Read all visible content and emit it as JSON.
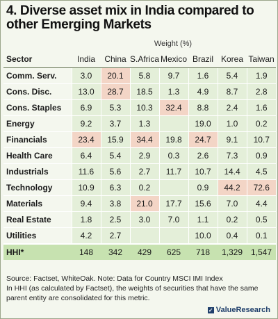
{
  "title": "4. Diverse asset mix in India compared to other Emerging Markets",
  "weight_label": "Weight (%)",
  "sector_label": "Sector",
  "columns": [
    "India",
    "China",
    "S.Africa",
    "Mexico",
    "Brazil",
    "Korea",
    "Taiwan"
  ],
  "rows": [
    {
      "sector": "Comm. Serv.",
      "values": [
        "3.0",
        "20.1",
        "5.8",
        "9.7",
        "1.6",
        "5.4",
        "1.9"
      ],
      "highlight": [
        false,
        true,
        false,
        false,
        false,
        false,
        false
      ]
    },
    {
      "sector": "Cons. Disc.",
      "values": [
        "13.0",
        "28.7",
        "18.5",
        "1.3",
        "4.9",
        "8.7",
        "2.8"
      ],
      "highlight": [
        false,
        true,
        false,
        false,
        false,
        false,
        false
      ]
    },
    {
      "sector": "Cons. Staples",
      "values": [
        "6.9",
        "5.3",
        "10.3",
        "32.4",
        "8.8",
        "2.4",
        "1.6"
      ],
      "highlight": [
        false,
        false,
        false,
        true,
        false,
        false,
        false
      ]
    },
    {
      "sector": "Energy",
      "values": [
        "9.2",
        "3.7",
        "1.3",
        "",
        "19.0",
        "1.0",
        "0.2"
      ],
      "highlight": [
        false,
        false,
        false,
        false,
        false,
        false,
        false
      ]
    },
    {
      "sector": "Financials",
      "values": [
        "23.4",
        "15.9",
        "34.4",
        "19.8",
        "24.7",
        "9.1",
        "10.7"
      ],
      "highlight": [
        true,
        false,
        true,
        false,
        true,
        false,
        false
      ]
    },
    {
      "sector": "Health Care",
      "values": [
        "6.4",
        "5.4",
        "2.9",
        "0.3",
        "2.6",
        "7.3",
        "0.9"
      ],
      "highlight": [
        false,
        false,
        false,
        false,
        false,
        false,
        false
      ]
    },
    {
      "sector": "Industrials",
      "values": [
        "11.6",
        "5.6",
        "2.7",
        "11.7",
        "10.7",
        "14.4",
        "4.5"
      ],
      "highlight": [
        false,
        false,
        false,
        false,
        false,
        false,
        false
      ]
    },
    {
      "sector": "Technology",
      "values": [
        "10.9",
        "6.3",
        "0.2",
        "",
        "0.9",
        "44.2",
        "72.6"
      ],
      "highlight": [
        false,
        false,
        false,
        false,
        false,
        true,
        true
      ]
    },
    {
      "sector": "Materials",
      "values": [
        "9.4",
        "3.8",
        "21.0",
        "17.7",
        "15.6",
        "7.0",
        "4.4"
      ],
      "highlight": [
        false,
        false,
        true,
        false,
        false,
        false,
        false
      ]
    },
    {
      "sector": "Real Estate",
      "values": [
        "1.8",
        "2.5",
        "3.0",
        "7.0",
        "1.1",
        "0.2",
        "0.5"
      ],
      "highlight": [
        false,
        false,
        false,
        false,
        false,
        false,
        false
      ]
    },
    {
      "sector": "Utilities",
      "values": [
        "4.2",
        "2.7",
        "",
        "",
        "10.0",
        "0.4",
        "0.1"
      ],
      "highlight": [
        false,
        false,
        false,
        false,
        false,
        false,
        false
      ]
    }
  ],
  "hhi": {
    "label": "HHI*",
    "values": [
      "148",
      "342",
      "429",
      "625",
      "718",
      "1,329",
      "1,547"
    ]
  },
  "notes": {
    "source": "Source: Factset, WhiteOak. Note: Data for Country MSCI IMI Index",
    "footnote": "In HHI (as calculated by Factset), the weights of securities that have the same parent entity are consolidated for this metric."
  },
  "brand": "ValueResearch",
  "colors": {
    "highlight": "#f3d5c6",
    "cell": "#e4efd9",
    "hhi_row": "#c7e2b0",
    "background": "#f4f7ee"
  }
}
